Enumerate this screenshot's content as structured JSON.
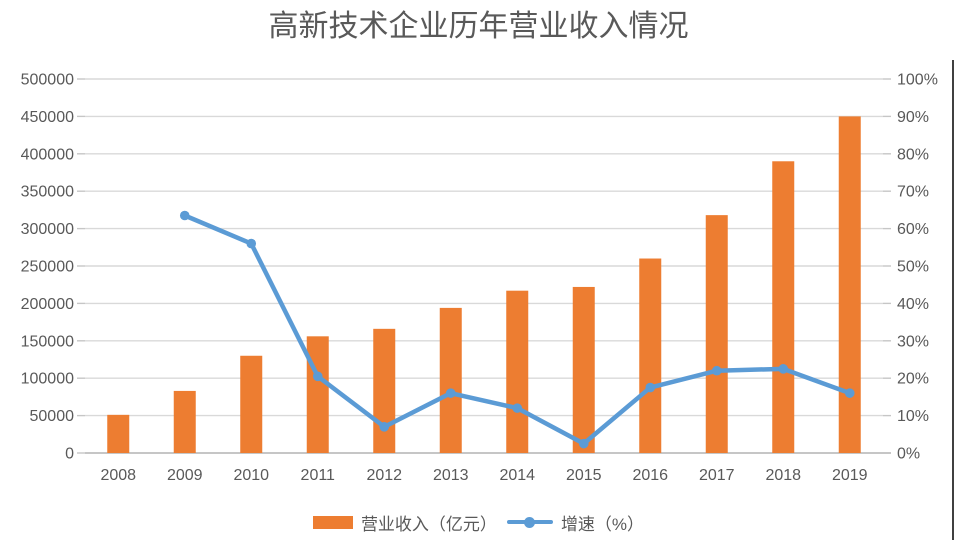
{
  "title": "高新技术企业历年营业收入情况",
  "colors": {
    "bar": "#ED7D31",
    "line": "#5B9BD5",
    "grid": "#D9D9D9",
    "axis_line": "#C6C6C6",
    "text": "#595959",
    "border": "#404040"
  },
  "chart_data": {
    "type": "bar",
    "subtype": "combo-bar-line-dual-axis",
    "title": "高新技术企业历年营业收入情况",
    "categories": [
      "2008",
      "2009",
      "2010",
      "2011",
      "2012",
      "2013",
      "2014",
      "2015",
      "2016",
      "2017",
      "2018",
      "2019"
    ],
    "series": [
      {
        "name": "营业收入（亿元）",
        "type": "bar",
        "axis": "left",
        "color": "#ED7D31",
        "values": [
          51000,
          83000,
          130000,
          156000,
          166000,
          194000,
          217000,
          222000,
          260000,
          318000,
          390000,
          450000
        ]
      },
      {
        "name": "增速（%）",
        "type": "line",
        "axis": "right",
        "color": "#5B9BD5",
        "values": [
          null,
          63.5,
          56,
          20.5,
          7,
          16,
          12,
          2.5,
          17.5,
          22,
          22.5,
          16
        ]
      }
    ],
    "left_axis": {
      "min": 0,
      "max": 500000,
      "step": 50000,
      "tick_labels": [
        "0",
        "50000",
        "100000",
        "150000",
        "200000",
        "250000",
        "300000",
        "350000",
        "400000",
        "450000",
        "500000"
      ]
    },
    "right_axis": {
      "min": 0,
      "max": 100,
      "step": 10,
      "tick_labels": [
        "0%",
        "10%",
        "20%",
        "30%",
        "40%",
        "50%",
        "60%",
        "70%",
        "80%",
        "90%",
        "100%"
      ]
    },
    "grid": true,
    "legend_position": "bottom"
  }
}
